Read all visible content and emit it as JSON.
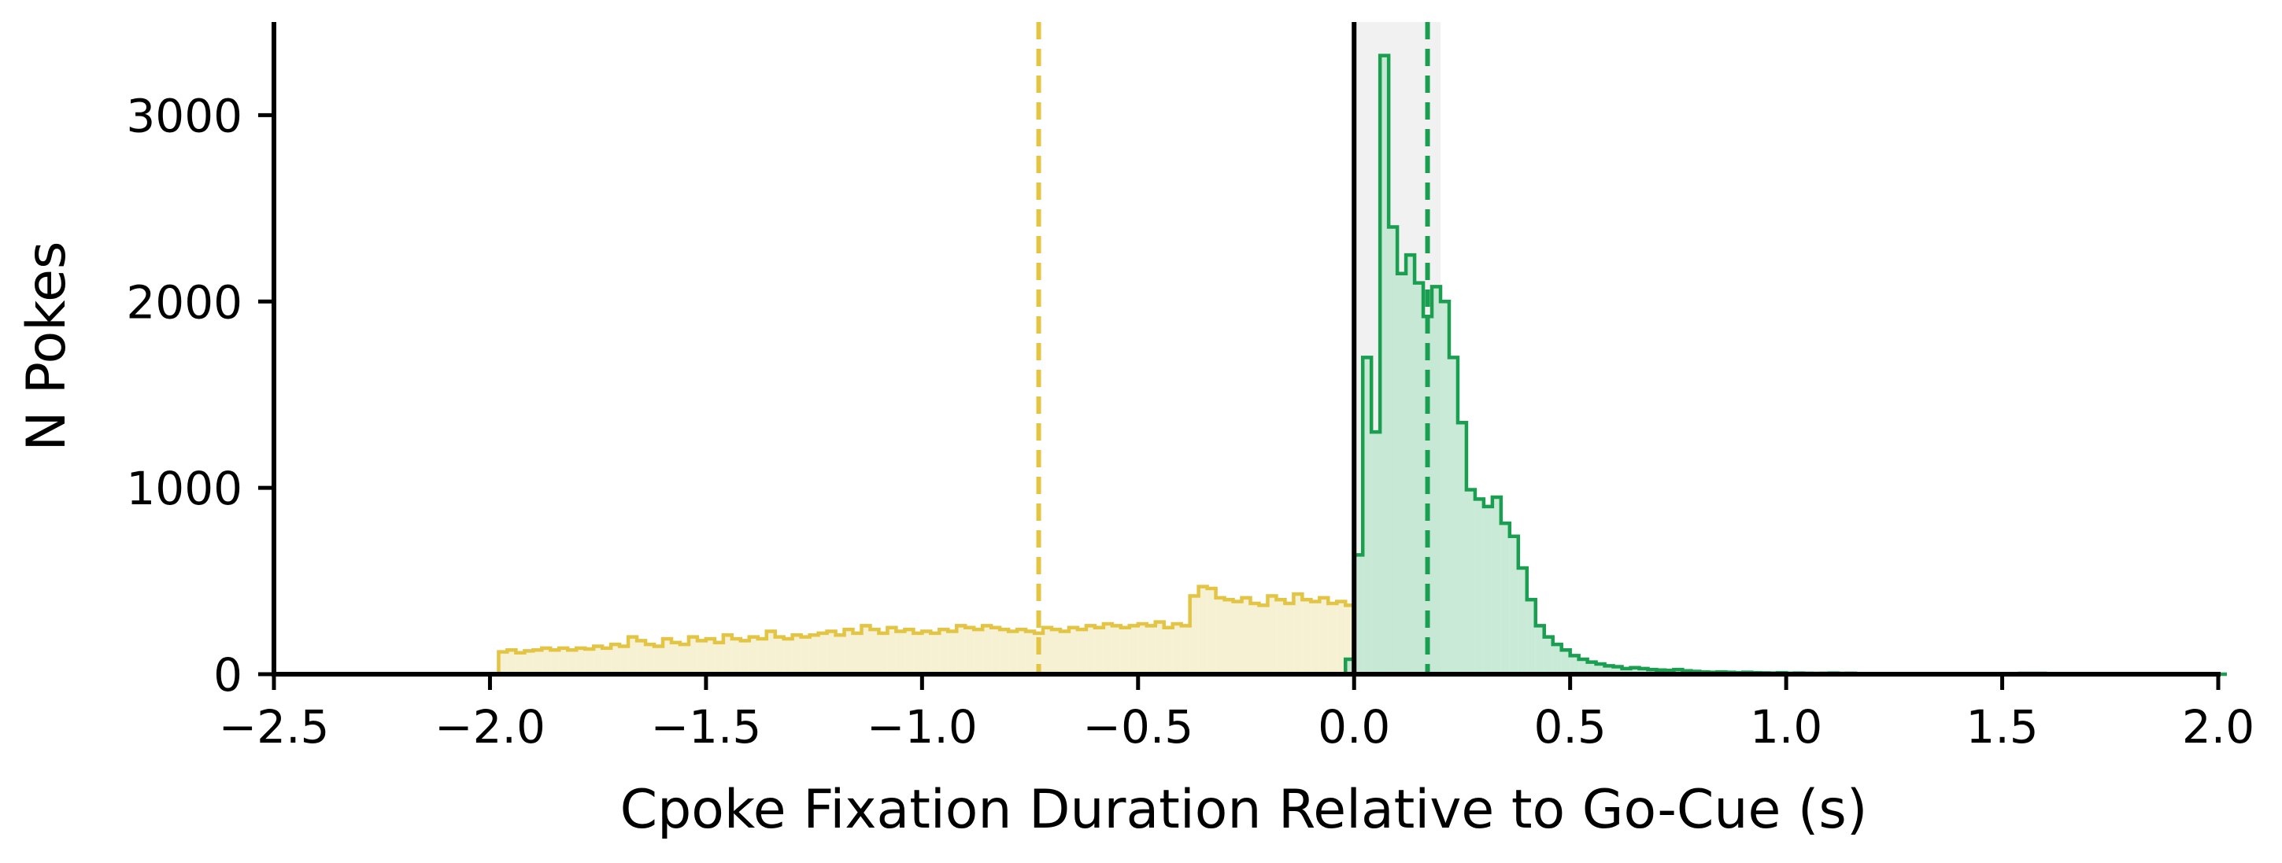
{
  "chart_data": {
    "type": "histogram-step",
    "title": "",
    "xlabel": "Cpoke Fixation Duration Relative to Go-Cue (s)",
    "ylabel": "N Pokes",
    "xlim": [
      -2.5,
      2.0
    ],
    "ylim": [
      0,
      3500
    ],
    "x_ticks": [
      -2.5,
      -2.0,
      -1.5,
      -1.0,
      -0.5,
      0.0,
      0.5,
      1.0,
      1.5,
      2.0
    ],
    "x_tick_labels": [
      "−2.5",
      "−2.0",
      "−1.5",
      "−1.0",
      "−0.5",
      "0.0",
      "0.5",
      "1.0",
      "1.5",
      "2.0"
    ],
    "y_ticks": [
      0,
      1000,
      2000,
      3000
    ],
    "y_tick_labels": [
      "0",
      "1000",
      "2000",
      "3000"
    ],
    "grid": false,
    "bin_width": 0.02,
    "shaded_region": {
      "x0": 0.0,
      "x1": 0.2,
      "color": "#e6e6e6"
    },
    "reference_line": {
      "x": 0.0,
      "color": "#000000",
      "style": "solid"
    },
    "series": [
      {
        "color": "#e3c443",
        "fill": "#f6efcc",
        "mean_line_x": -0.73,
        "bins": [
          [
            -2.0,
            0
          ],
          [
            -1.98,
            120
          ],
          [
            -1.96,
            130
          ],
          [
            -1.94,
            115
          ],
          [
            -1.92,
            125
          ],
          [
            -1.9,
            130
          ],
          [
            -1.88,
            140
          ],
          [
            -1.86,
            130
          ],
          [
            -1.84,
            140
          ],
          [
            -1.82,
            130
          ],
          [
            -1.8,
            140
          ],
          [
            -1.78,
            135
          ],
          [
            -1.76,
            150
          ],
          [
            -1.74,
            140
          ],
          [
            -1.72,
            160
          ],
          [
            -1.7,
            150
          ],
          [
            -1.68,
            200
          ],
          [
            -1.66,
            180
          ],
          [
            -1.64,
            160
          ],
          [
            -1.62,
            150
          ],
          [
            -1.6,
            190
          ],
          [
            -1.58,
            170
          ],
          [
            -1.56,
            160
          ],
          [
            -1.54,
            200
          ],
          [
            -1.52,
            180
          ],
          [
            -1.5,
            190
          ],
          [
            -1.48,
            170
          ],
          [
            -1.46,
            210
          ],
          [
            -1.44,
            190
          ],
          [
            -1.42,
            180
          ],
          [
            -1.4,
            200
          ],
          [
            -1.38,
            190
          ],
          [
            -1.36,
            230
          ],
          [
            -1.34,
            200
          ],
          [
            -1.32,
            190
          ],
          [
            -1.3,
            210
          ],
          [
            -1.28,
            200
          ],
          [
            -1.26,
            210
          ],
          [
            -1.24,
            220
          ],
          [
            -1.22,
            230
          ],
          [
            -1.2,
            210
          ],
          [
            -1.18,
            240
          ],
          [
            -1.16,
            220
          ],
          [
            -1.14,
            260
          ],
          [
            -1.12,
            240
          ],
          [
            -1.1,
            220
          ],
          [
            -1.08,
            250
          ],
          [
            -1.06,
            230
          ],
          [
            -1.04,
            240
          ],
          [
            -1.02,
            220
          ],
          [
            -1.0,
            230
          ],
          [
            -0.98,
            220
          ],
          [
            -0.96,
            240
          ],
          [
            -0.94,
            230
          ],
          [
            -0.92,
            260
          ],
          [
            -0.9,
            250
          ],
          [
            -0.88,
            240
          ],
          [
            -0.86,
            260
          ],
          [
            -0.84,
            250
          ],
          [
            -0.82,
            240
          ],
          [
            -0.8,
            230
          ],
          [
            -0.78,
            240
          ],
          [
            -0.76,
            230
          ],
          [
            -0.74,
            220
          ],
          [
            -0.72,
            250
          ],
          [
            -0.7,
            240
          ],
          [
            -0.68,
            230
          ],
          [
            -0.66,
            250
          ],
          [
            -0.64,
            240
          ],
          [
            -0.62,
            260
          ],
          [
            -0.6,
            250
          ],
          [
            -0.58,
            270
          ],
          [
            -0.56,
            260
          ],
          [
            -0.54,
            250
          ],
          [
            -0.52,
            260
          ],
          [
            -0.5,
            270
          ],
          [
            -0.48,
            260
          ],
          [
            -0.46,
            280
          ],
          [
            -0.44,
            250
          ],
          [
            -0.42,
            270
          ],
          [
            -0.4,
            260
          ],
          [
            -0.38,
            420
          ],
          [
            -0.36,
            470
          ],
          [
            -0.34,
            460
          ],
          [
            -0.32,
            410
          ],
          [
            -0.3,
            400
          ],
          [
            -0.28,
            390
          ],
          [
            -0.26,
            410
          ],
          [
            -0.24,
            380
          ],
          [
            -0.22,
            370
          ],
          [
            -0.2,
            420
          ],
          [
            -0.18,
            400
          ],
          [
            -0.16,
            380
          ],
          [
            -0.14,
            430
          ],
          [
            -0.12,
            400
          ],
          [
            -0.1,
            390
          ],
          [
            -0.08,
            410
          ],
          [
            -0.06,
            380
          ],
          [
            -0.04,
            390
          ],
          [
            -0.02,
            370
          ],
          [
            0.0,
            0
          ]
        ]
      },
      {
        "color": "#1a9e50",
        "fill": "#bfe6d0",
        "mean_line_x": 0.17,
        "bins": [
          [
            -0.02,
            80
          ],
          [
            0.0,
            640
          ],
          [
            0.02,
            1700
          ],
          [
            0.04,
            1300
          ],
          [
            0.06,
            3320
          ],
          [
            0.08,
            2400
          ],
          [
            0.1,
            2150
          ],
          [
            0.12,
            2250
          ],
          [
            0.14,
            2100
          ],
          [
            0.16,
            1920
          ],
          [
            0.18,
            2080
          ],
          [
            0.2,
            2000
          ],
          [
            0.22,
            1700
          ],
          [
            0.24,
            1350
          ],
          [
            0.26,
            990
          ],
          [
            0.28,
            940
          ],
          [
            0.3,
            900
          ],
          [
            0.32,
            950
          ],
          [
            0.34,
            810
          ],
          [
            0.36,
            740
          ],
          [
            0.38,
            570
          ],
          [
            0.4,
            400
          ],
          [
            0.42,
            260
          ],
          [
            0.44,
            200
          ],
          [
            0.46,
            160
          ],
          [
            0.48,
            130
          ],
          [
            0.5,
            100
          ],
          [
            0.52,
            80
          ],
          [
            0.54,
            65
          ],
          [
            0.56,
            55
          ],
          [
            0.58,
            45
          ],
          [
            0.6,
            40
          ],
          [
            0.62,
            30
          ],
          [
            0.64,
            35
          ],
          [
            0.66,
            30
          ],
          [
            0.68,
            25
          ],
          [
            0.7,
            22
          ],
          [
            0.72,
            20
          ],
          [
            0.74,
            25
          ],
          [
            0.76,
            18
          ],
          [
            0.78,
            15
          ],
          [
            0.8,
            12
          ],
          [
            0.82,
            10
          ],
          [
            0.84,
            12
          ],
          [
            0.86,
            10
          ],
          [
            0.88,
            8
          ],
          [
            0.9,
            10
          ],
          [
            0.92,
            8
          ],
          [
            0.94,
            7
          ],
          [
            0.96,
            6
          ],
          [
            0.98,
            8
          ],
          [
            1.0,
            5
          ],
          [
            1.02,
            6
          ],
          [
            1.04,
            5
          ],
          [
            1.06,
            4
          ],
          [
            1.08,
            5
          ],
          [
            1.1,
            6
          ],
          [
            1.12,
            4
          ],
          [
            1.14,
            5
          ],
          [
            1.16,
            3
          ],
          [
            1.2,
            3
          ],
          [
            1.3,
            2
          ],
          [
            1.4,
            2
          ],
          [
            1.5,
            3
          ],
          [
            1.54,
            4
          ],
          [
            1.6,
            2
          ],
          [
            1.7,
            2
          ],
          [
            1.8,
            1
          ],
          [
            1.9,
            1
          ],
          [
            2.0,
            0
          ]
        ]
      }
    ]
  }
}
